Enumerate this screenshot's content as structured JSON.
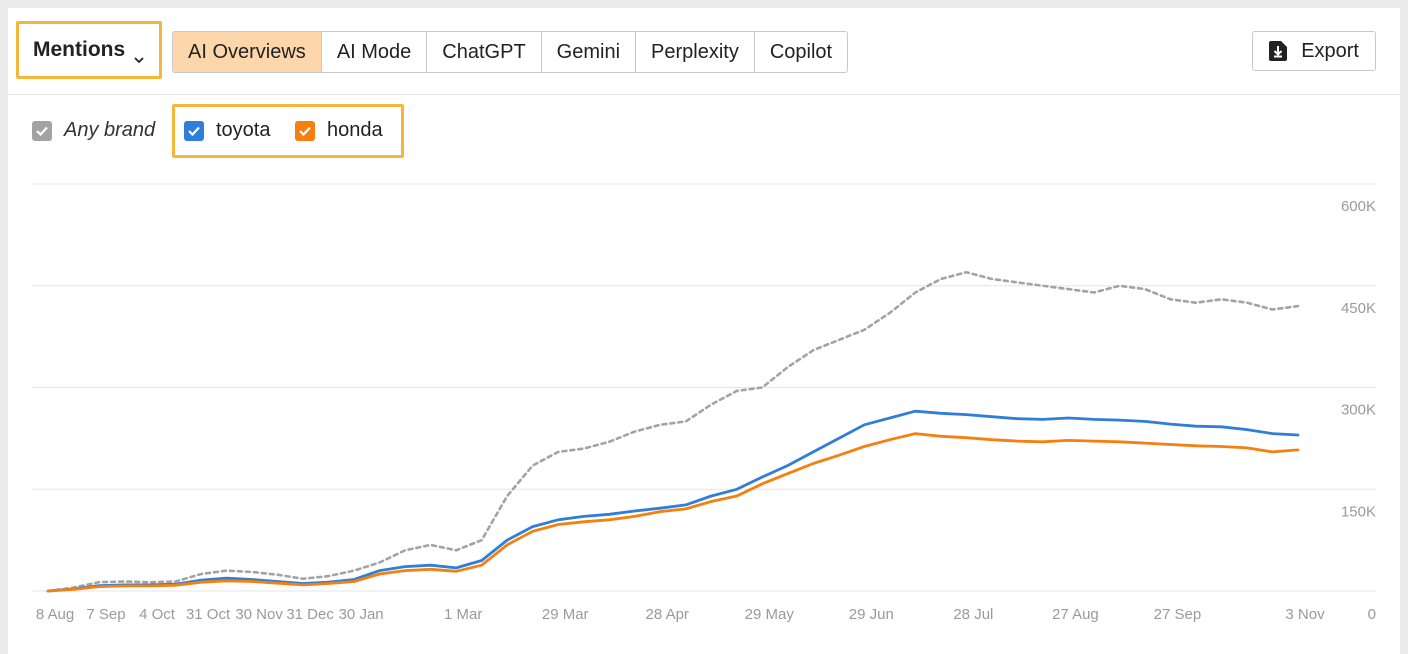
{
  "toolbar": {
    "metric_label": "Mentions",
    "tabs": [
      {
        "label": "AI Overviews",
        "active": true
      },
      {
        "label": "AI Mode",
        "active": false
      },
      {
        "label": "ChatGPT",
        "active": false
      },
      {
        "label": "Gemini",
        "active": false
      },
      {
        "label": "Perplexity",
        "active": false
      },
      {
        "label": "Copilot",
        "active": false
      }
    ],
    "export_label": "Export",
    "active_tab_color": "#fdd7ab",
    "highlight_color": "#f7b53b"
  },
  "legend": {
    "any_brand": {
      "label": "Any brand",
      "checked": true,
      "color": "#a3a3a3"
    },
    "brands": [
      {
        "label": "toyota",
        "checked": true,
        "color": "#2f7ed8"
      },
      {
        "label": "honda",
        "checked": true,
        "color": "#f57f0f"
      }
    ]
  },
  "chart_data": {
    "type": "line",
    "x": [
      "8 Aug",
      "22 Aug",
      "7 Sep",
      "21 Sep",
      "4 Oct",
      "18 Oct",
      "31 Oct",
      "15 Nov",
      "30 Nov",
      "15 Dec",
      "31 Dec",
      "15 Jan",
      "30 Jan",
      "8 Feb",
      "15 Feb",
      "22 Feb",
      "1 Mar",
      "8 Mar",
      "15 Mar",
      "22 Mar",
      "29 Mar",
      "7 Apr",
      "14 Apr",
      "21 Apr",
      "28 Apr",
      "7 May",
      "15 May",
      "22 May",
      "29 May",
      "6 Jun",
      "14 Jun",
      "22 Jun",
      "29 Jun",
      "7 Jul",
      "14 Jul",
      "21 Jul",
      "28 Jul",
      "5 Aug",
      "12 Aug",
      "20 Aug",
      "27 Aug",
      "4 Sep",
      "12 Sep",
      "20 Sep",
      "27 Sep",
      "5 Oct",
      "12 Oct",
      "20 Oct",
      "27 Oct",
      "3 Nov"
    ],
    "series": [
      {
        "name": "Any brand",
        "color": "#a3a3a3",
        "dashed": true,
        "values": [
          0,
          5000,
          13000,
          14000,
          13000,
          14000,
          25000,
          30000,
          28000,
          24000,
          18000,
          22000,
          30000,
          42000,
          60000,
          68000,
          60000,
          75000,
          140000,
          185000,
          205000,
          210000,
          220000,
          235000,
          245000,
          250000,
          275000,
          295000,
          300000,
          330000,
          355000,
          370000,
          385000,
          410000,
          440000,
          460000,
          470000,
          460000,
          455000,
          450000,
          445000,
          440000,
          450000,
          445000,
          430000,
          425000,
          430000,
          425000,
          415000,
          420000
        ]
      },
      {
        "name": "toyota",
        "color": "#2f7ed8",
        "dashed": false,
        "values": [
          0,
          3000,
          8000,
          9000,
          9000,
          10000,
          16000,
          19000,
          17000,
          14000,
          11000,
          13000,
          17000,
          30000,
          36000,
          38000,
          34000,
          45000,
          75000,
          95000,
          105000,
          110000,
          113000,
          118000,
          122000,
          127000,
          140000,
          150000,
          168000,
          185000,
          205000,
          225000,
          245000,
          255000,
          265000,
          262000,
          260000,
          257000,
          254000,
          253000,
          255000,
          253000,
          252000,
          250000,
          246000,
          243000,
          242000,
          238000,
          232000,
          230000
        ]
      },
      {
        "name": "honda",
        "color": "#f57f0f",
        "dashed": false,
        "values": [
          0,
          2500,
          6500,
          7500,
          7500,
          8500,
          13000,
          15000,
          14000,
          11500,
          9000,
          11000,
          14000,
          25000,
          30000,
          32000,
          29000,
          38000,
          68000,
          88000,
          98000,
          102000,
          105000,
          110000,
          117000,
          121000,
          132000,
          140000,
          158000,
          173000,
          188000,
          200000,
          213000,
          223000,
          232000,
          228000,
          226000,
          223000,
          221000,
          220000,
          222000,
          221000,
          220000,
          218000,
          216000,
          214000,
          213000,
          211000,
          205000,
          208000
        ]
      }
    ],
    "x_tick_labels": [
      "8 Aug",
      "7 Sep",
      "4 Oct",
      "31 Oct",
      "30 Nov",
      "31 Dec",
      "30 Jan",
      "1 Mar",
      "29 Mar",
      "28 Apr",
      "29 May",
      "29 Jun",
      "28 Jul",
      "27 Aug",
      "27 Sep",
      "3 Nov"
    ],
    "y_tick_labels": [
      "0",
      "150K",
      "300K",
      "450K",
      "600K"
    ],
    "y_ticks": [
      0,
      150000,
      300000,
      450000,
      600000
    ],
    "ylim": [
      0,
      600000
    ],
    "grid": true,
    "y_axis_side": "right"
  }
}
